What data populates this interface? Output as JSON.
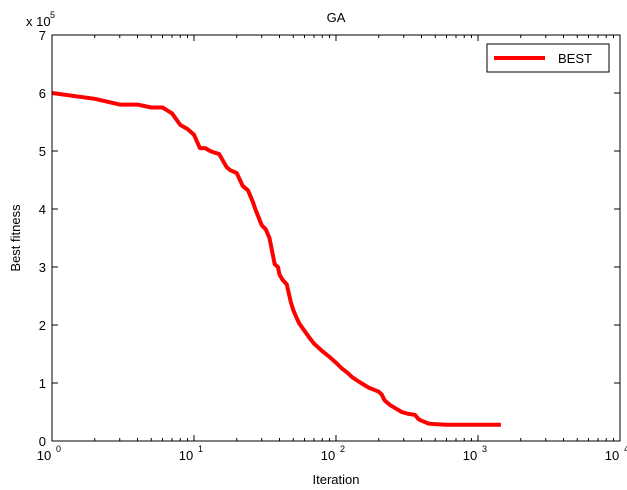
{
  "chart_data": {
    "type": "line",
    "title": "GA",
    "xlabel": "Iteration",
    "ylabel": "Best fitness",
    "xscale": "log",
    "xlim": [
      1,
      10000
    ],
    "ylim": [
      0,
      700000
    ],
    "y_multiplier_label": {
      "base": "x 10",
      "exp": "5"
    },
    "x_ticks": [
      {
        "value": 1,
        "base": "10",
        "exp": "0"
      },
      {
        "value": 10,
        "base": "10",
        "exp": "1"
      },
      {
        "value": 100,
        "base": "10",
        "exp": "2"
      },
      {
        "value": 1000,
        "base": "10",
        "exp": "3"
      },
      {
        "value": 10000,
        "base": "10",
        "exp": "4"
      }
    ],
    "y_ticks": [
      {
        "value": 0,
        "label": "0"
      },
      {
        "value": 100000,
        "label": "1"
      },
      {
        "value": 200000,
        "label": "2"
      },
      {
        "value": 300000,
        "label": "3"
      },
      {
        "value": 400000,
        "label": "4"
      },
      {
        "value": 500000,
        "label": "5"
      },
      {
        "value": 600000,
        "label": "6"
      },
      {
        "value": 700000,
        "label": "7"
      }
    ],
    "grid": false,
    "legend": {
      "position": "top-right",
      "entries": [
        "BEST"
      ]
    },
    "series": [
      {
        "name": "BEST",
        "color": "#ff0000",
        "x": [
          1,
          2,
          3,
          4,
          5,
          6,
          7,
          8,
          9,
          10,
          11,
          12,
          13,
          14,
          15,
          17,
          18,
          20,
          22,
          24,
          26,
          27,
          30,
          32,
          34,
          37,
          39,
          40,
          42,
          45,
          48,
          50,
          52,
          55,
          60,
          65,
          70,
          80,
          90,
          100,
          110,
          120,
          130,
          150,
          170,
          200,
          210,
          220,
          240,
          260,
          290,
          320,
          360,
          380,
          400,
          450,
          500,
          600,
          800,
          1000,
          1200,
          1450
        ],
        "y": [
          600000,
          590000,
          580000,
          580000,
          575000,
          575000,
          565000,
          545000,
          538000,
          528000,
          505000,
          505000,
          500000,
          497000,
          495000,
          472000,
          467000,
          462000,
          440000,
          432000,
          412000,
          400000,
          372000,
          365000,
          350000,
          305000,
          300000,
          287000,
          278000,
          270000,
          240000,
          226000,
          216000,
          203000,
          190000,
          178000,
          168000,
          155000,
          145000,
          135000,
          125000,
          118000,
          110000,
          100000,
          92000,
          85000,
          80000,
          70000,
          62000,
          57000,
          50000,
          47000,
          45000,
          38000,
          35000,
          30000,
          29000,
          28000,
          28000,
          28000,
          28000,
          28000
        ]
      }
    ]
  }
}
